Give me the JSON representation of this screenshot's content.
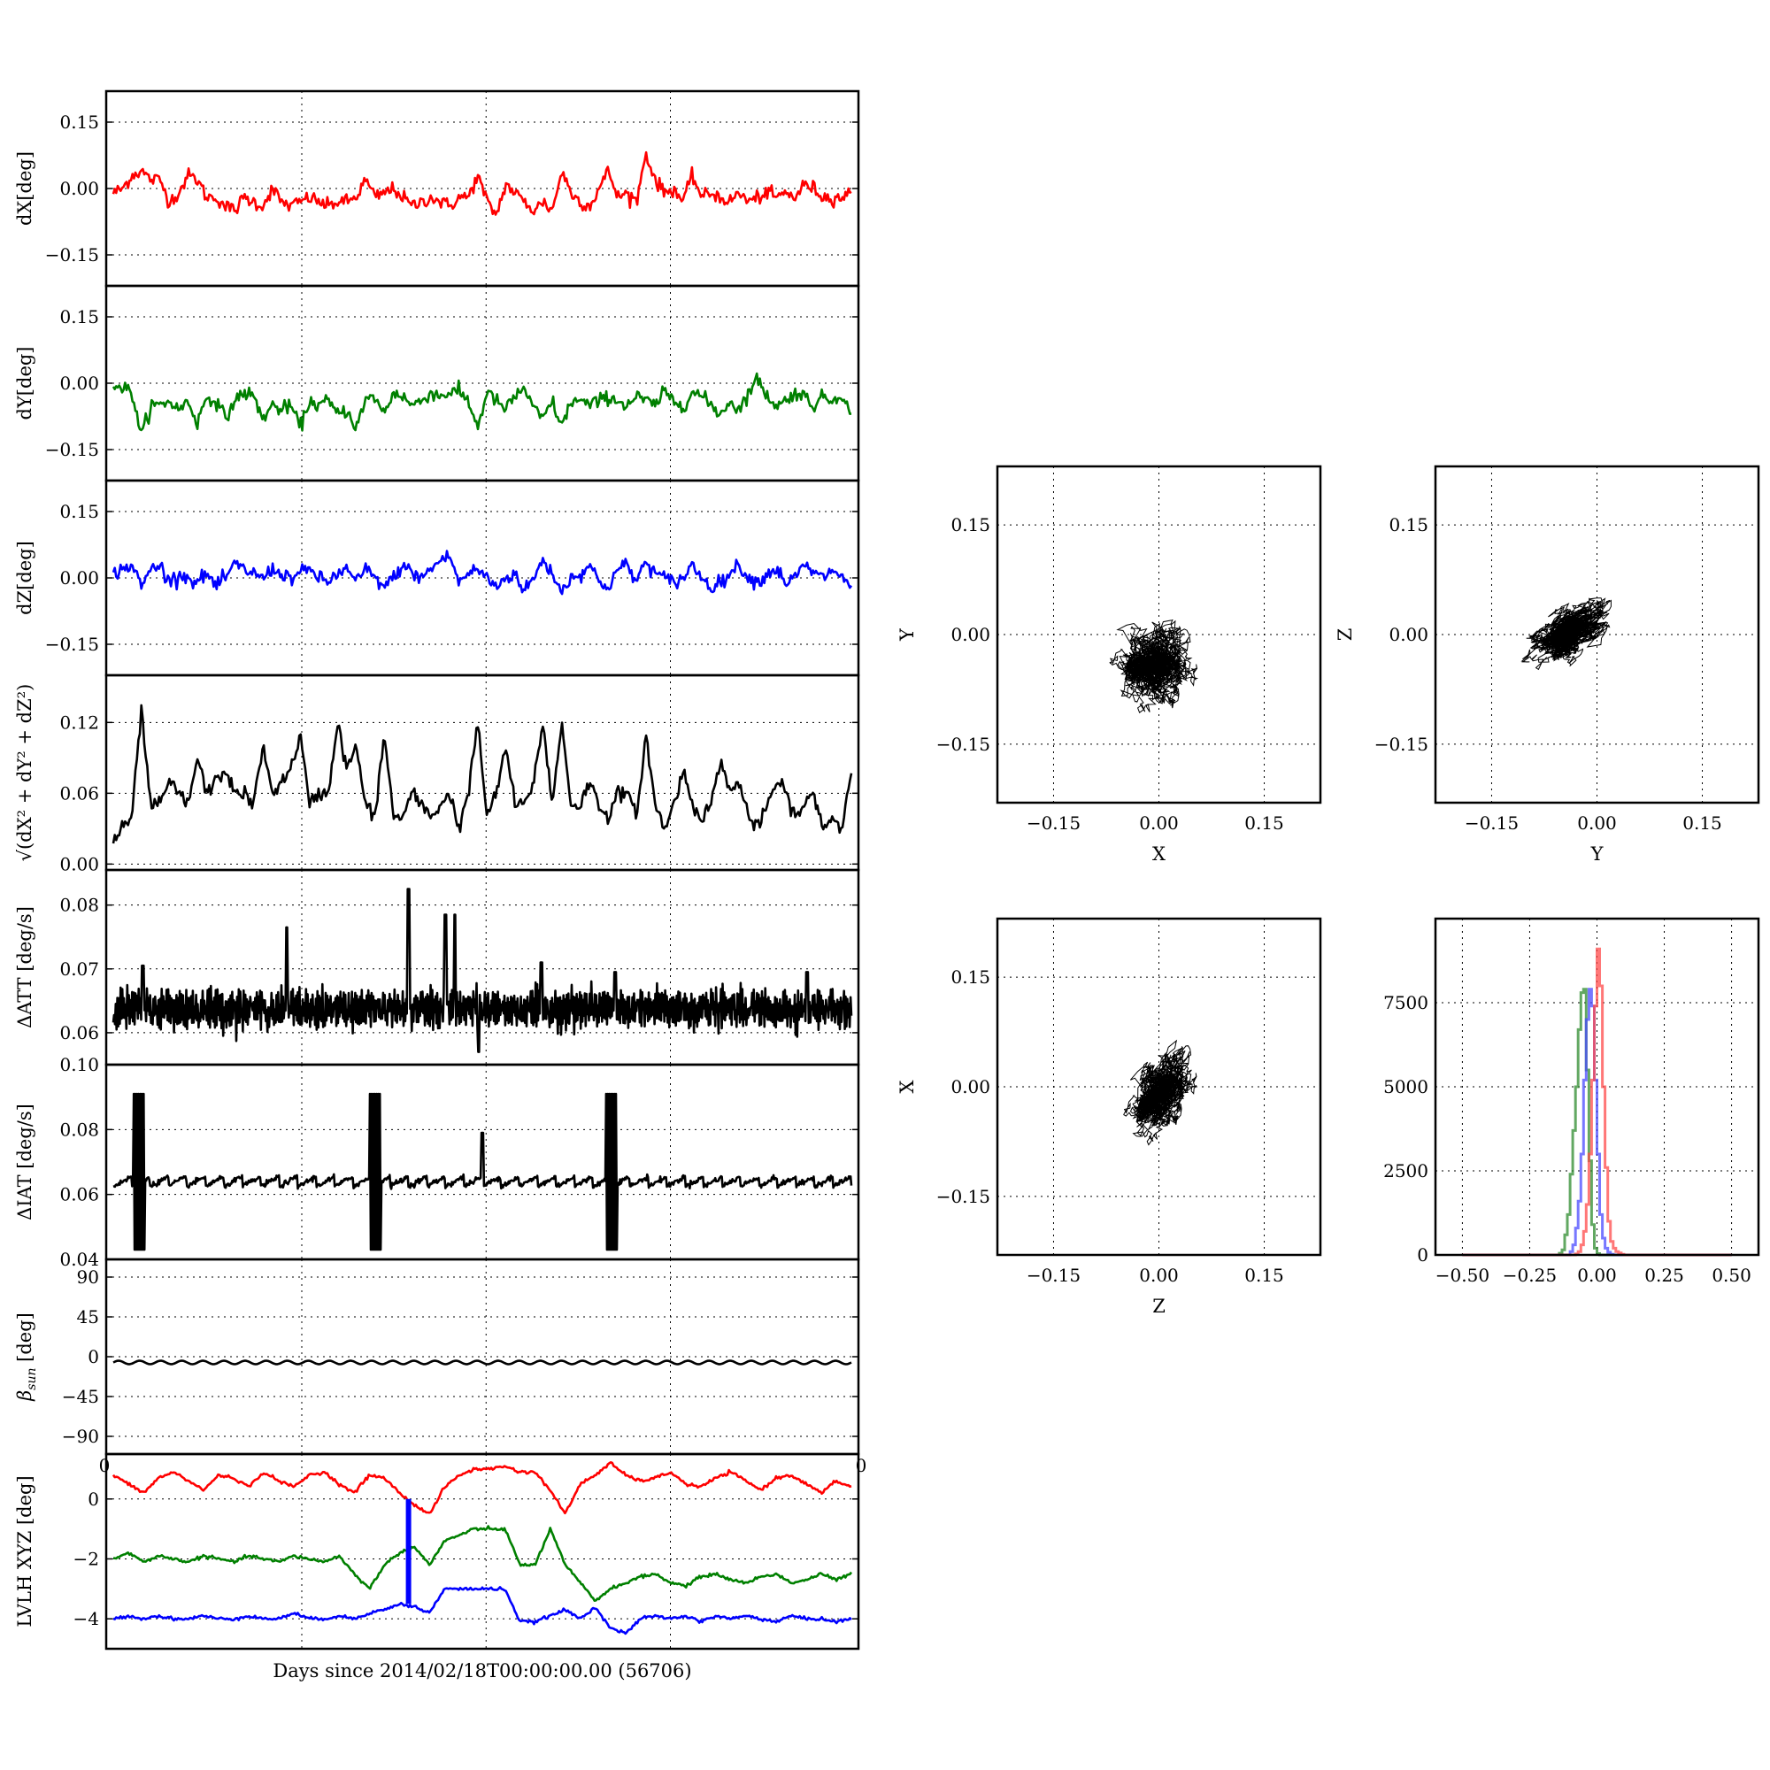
{
  "chart_data": {
    "shared_xlabel": "Days since 2014/02/18T00:00:00.00 (56706)",
    "strip_panels": [
      {
        "name": "dx",
        "type": "line",
        "ylabel": "dX[deg]",
        "ylim": [
          -0.22,
          0.22
        ],
        "yticks": [
          -0.15,
          0.0,
          0.15
        ],
        "ytick_labels": [
          "−0.15",
          "0.00",
          "0.15"
        ],
        "grid": true,
        "series": [
          {
            "color": "#ff0000",
            "values": [
              -0.01,
              0.0,
              0.03,
              0.04,
              0.02,
              0.02,
              -0.03,
              -0.01,
              0.03,
              0.02,
              -0.02,
              -0.02,
              -0.04,
              -0.05,
              -0.02,
              -0.03,
              -0.04,
              0.0,
              -0.03,
              -0.04,
              -0.03,
              -0.02,
              -0.03,
              -0.04,
              -0.03,
              -0.03,
              -0.02,
              0.02,
              -0.02,
              -0.01,
              0.0,
              -0.02,
              -0.04,
              -0.03,
              -0.02,
              -0.03,
              -0.04,
              -0.02,
              -0.02,
              0.03,
              -0.03,
              -0.06,
              0.01,
              -0.01,
              -0.03,
              -0.05,
              -0.03,
              -0.05,
              0.04,
              -0.01,
              -0.03,
              -0.04,
              0.0,
              0.04,
              -0.02,
              -0.01,
              -0.03,
              0.08,
              0.02,
              -0.01,
              0.0,
              -0.03,
              0.03,
              -0.02,
              -0.01,
              -0.02,
              -0.03,
              -0.01,
              -0.03,
              -0.02,
              -0.01,
              -0.02,
              -0.01,
              -0.02,
              0.01,
              0.0,
              -0.02,
              -0.02,
              -0.02,
              -0.01
            ]
          }
        ]
      },
      {
        "name": "dy",
        "type": "line",
        "ylabel": "dY[deg]",
        "ylim": [
          -0.22,
          0.22
        ],
        "yticks": [
          -0.15,
          0.0,
          0.15
        ],
        "ytick_labels": [
          "−0.15",
          "0.00",
          "0.15"
        ],
        "grid": true,
        "series": [
          {
            "color": "#008000",
            "values": [
              0.0,
              -0.01,
              -0.02,
              -0.12,
              -0.05,
              -0.05,
              -0.04,
              -0.06,
              -0.04,
              -0.09,
              -0.03,
              -0.04,
              -0.08,
              -0.04,
              -0.02,
              -0.03,
              -0.08,
              -0.05,
              -0.06,
              -0.05,
              -0.1,
              -0.04,
              -0.05,
              -0.04,
              -0.07,
              -0.06,
              -0.1,
              -0.04,
              -0.03,
              -0.07,
              -0.02,
              -0.03,
              -0.05,
              -0.04,
              -0.02,
              -0.03,
              -0.02,
              -0.02,
              -0.04,
              -0.1,
              -0.02,
              -0.04,
              -0.06,
              -0.03,
              -0.01,
              -0.06,
              -0.08,
              -0.04,
              -0.1,
              -0.04,
              -0.04,
              -0.05,
              -0.04,
              -0.03,
              -0.04,
              -0.05,
              -0.03,
              -0.04,
              -0.05,
              -0.02,
              -0.04,
              -0.05,
              -0.02,
              -0.03,
              -0.05,
              -0.07,
              -0.04,
              -0.06,
              -0.02,
              0.01,
              -0.03,
              -0.05,
              -0.04,
              -0.02,
              -0.03,
              -0.05,
              -0.03,
              -0.04,
              -0.02,
              -0.08
            ]
          }
        ]
      },
      {
        "name": "dz",
        "type": "line",
        "ylabel": "dZ[deg]",
        "ylim": [
          -0.22,
          0.22
        ],
        "yticks": [
          -0.15,
          0.0,
          0.15
        ],
        "ytick_labels": [
          "−0.15",
          "0.00",
          "0.15"
        ],
        "grid": true,
        "series": [
          {
            "color": "#0000ff",
            "values": [
              0.01,
              0.02,
              0.03,
              -0.02,
              0.02,
              0.03,
              -0.01,
              0.01,
              0.0,
              -0.01,
              0.01,
              -0.02,
              0.0,
              0.03,
              0.02,
              0.01,
              0.0,
              0.02,
              0.01,
              0.0,
              0.01,
              0.02,
              0.0,
              -0.01,
              0.01,
              0.02,
              -0.01,
              0.02,
              0.0,
              -0.02,
              0.0,
              0.03,
              0.01,
              0.0,
              0.02,
              0.04,
              0.05,
              -0.01,
              0.01,
              0.02,
              0.0,
              -0.02,
              0.0,
              0.01,
              -0.03,
              0.0,
              0.04,
              0.01,
              -0.03,
              0.0,
              0.01,
              0.03,
              -0.01,
              -0.02,
              0.02,
              0.03,
              -0.01,
              0.04,
              0.01,
              0.0,
              -0.01,
              0.0,
              0.03,
              0.0,
              -0.02,
              -0.01,
              0.01,
              0.03,
              0.0,
              -0.01,
              0.01,
              0.02,
              -0.01,
              0.0,
              0.03,
              0.01,
              0.0,
              0.02,
              0.0,
              -0.02
            ]
          }
        ]
      },
      {
        "name": "total",
        "type": "line",
        "ylabel": "√(dX² + dY² + dZ²)",
        "ylim": [
          -0.005,
          0.16
        ],
        "yticks": [
          0.0,
          0.06,
          0.12
        ],
        "ytick_labels": [
          "0.00",
          "0.06",
          "0.12"
        ],
        "grid": true,
        "series": [
          {
            "color": "#000000",
            "values": [
              0.02,
              0.03,
              0.04,
              0.13,
              0.05,
              0.05,
              0.07,
              0.06,
              0.05,
              0.09,
              0.06,
              0.07,
              0.08,
              0.06,
              0.06,
              0.05,
              0.1,
              0.06,
              0.07,
              0.08,
              0.11,
              0.05,
              0.06,
              0.06,
              0.12,
              0.08,
              0.1,
              0.05,
              0.04,
              0.11,
              0.04,
              0.04,
              0.06,
              0.05,
              0.04,
              0.05,
              0.06,
              0.03,
              0.06,
              0.12,
              0.04,
              0.06,
              0.1,
              0.05,
              0.05,
              0.07,
              0.12,
              0.05,
              0.12,
              0.05,
              0.05,
              0.07,
              0.05,
              0.04,
              0.06,
              0.06,
              0.04,
              0.11,
              0.05,
              0.03,
              0.05,
              0.08,
              0.05,
              0.04,
              0.05,
              0.09,
              0.06,
              0.07,
              0.04,
              0.03,
              0.05,
              0.07,
              0.06,
              0.04,
              0.05,
              0.06,
              0.03,
              0.04,
              0.03,
              0.08
            ]
          }
        ]
      },
      {
        "name": "datt",
        "type": "line",
        "ylabel": "ΔATT [deg/s]",
        "ylim": [
          0.055,
          0.0855
        ],
        "yticks": [
          0.06,
          0.07,
          0.08
        ],
        "ytick_labels": [
          "0.06",
          "0.07",
          "0.08"
        ],
        "grid": true,
        "series": [
          {
            "color": "#000000",
            "mean": 0.0635,
            "band": 0.0025,
            "spikes": [
              [
                0.04,
                0.0705
              ],
              [
                0.235,
                0.0765
              ],
              [
                0.4,
                0.0825
              ],
              [
                0.45,
                0.0785
              ],
              [
                0.463,
                0.0785
              ],
              [
                0.495,
                0.057
              ],
              [
                0.58,
                0.071
              ],
              [
                0.68,
                0.0695
              ],
              [
                0.94,
                0.0695
              ]
            ]
          }
        ]
      },
      {
        "name": "diat",
        "type": "line",
        "ylabel": "ΔIAT [deg/s]",
        "ylim": [
          0.04,
          0.1
        ],
        "yticks": [
          0.04,
          0.06,
          0.08,
          0.1
        ],
        "ytick_labels": [
          "0.04",
          "0.06",
          "0.08",
          "0.10"
        ],
        "grid": true,
        "series": [
          {
            "color": "#000000",
            "mean": 0.064,
            "sawtooth": 0.003,
            "bursts": [
              0.035,
              0.355,
              0.675
            ],
            "spike": [
              0.5,
              0.079
            ]
          }
        ]
      },
      {
        "name": "beta",
        "type": "line",
        "ylabel": "β_sun [deg]",
        "ylabel_main": "β",
        "ylabel_sub": "sun",
        "ylim": [
          -110,
          110
        ],
        "yticks": [
          -90,
          -45,
          0,
          45,
          90
        ],
        "ytick_labels": [
          "−90",
          "−45",
          "0",
          "45",
          "90"
        ],
        "grid": true,
        "series": [
          {
            "color": "#000000",
            "mean": -6.5,
            "amplitude": 2
          }
        ]
      },
      {
        "name": "lvlh",
        "type": "line",
        "ylabel": "LVLH XYZ [deg]",
        "ylim": [
          -5.0,
          1.5
        ],
        "yticks": [
          -4,
          -2,
          0
        ],
        "ytick_labels": [
          "−4",
          "−2",
          "0"
        ],
        "grid": true,
        "xlim": [
          0,
          4
        ],
        "xtick_labels_visible": [
          "0",
          "0"
        ],
        "series": [
          {
            "color": "#ff0000",
            "values": [
              0.8,
              0.5,
              0.2,
              0.7,
              0.9,
              0.6,
              0.3,
              0.8,
              0.7,
              0.4,
              0.9,
              0.6,
              0.4,
              0.8,
              0.9,
              0.5,
              0.2,
              0.8,
              0.7,
              0.2,
              -0.2,
              -0.5,
              0.4,
              0.8,
              1.0,
              1.0,
              1.1,
              0.9,
              0.9,
              0.3,
              -0.5,
              0.5,
              0.8,
              1.2,
              0.8,
              0.6,
              0.7,
              0.9,
              0.5,
              0.4,
              0.7,
              0.9,
              0.6,
              0.3,
              0.7,
              0.8,
              0.5,
              0.2,
              0.6,
              0.4
            ]
          },
          {
            "color": "#008000",
            "values": [
              -2.0,
              -1.8,
              -2.1,
              -1.9,
              -2.0,
              -2.1,
              -1.9,
              -2.0,
              -2.1,
              -1.9,
              -2.0,
              -2.1,
              -1.9,
              -2.0,
              -2.1,
              -1.9,
              -2.5,
              -3.0,
              -2.2,
              -1.8,
              -1.6,
              -2.2,
              -1.4,
              -1.2,
              -1.0,
              -1.0,
              -1.0,
              -2.2,
              -2.2,
              -1.0,
              -2.2,
              -2.8,
              -3.4,
              -3.0,
              -2.8,
              -2.6,
              -2.5,
              -2.8,
              -2.9,
              -2.6,
              -2.5,
              -2.7,
              -2.8,
              -2.6,
              -2.5,
              -2.8,
              -2.7,
              -2.5,
              -2.7,
              -2.5
            ]
          },
          {
            "color": "#0000ff",
            "values": [
              -4.0,
              -3.9,
              -4.0,
              -3.9,
              -4.0,
              -4.0,
              -3.9,
              -4.0,
              -4.0,
              -3.9,
              -4.0,
              -4.0,
              -3.8,
              -4.0,
              -4.0,
              -3.9,
              -4.0,
              -3.8,
              -3.7,
              -3.5,
              -3.6,
              -3.8,
              -3.0,
              -3.0,
              -3.0,
              -3.0,
              -3.0,
              -4.1,
              -4.1,
              -3.9,
              -3.7,
              -4.0,
              -3.6,
              -4.3,
              -4.5,
              -4.0,
              -3.9,
              -4.0,
              -3.9,
              -4.1,
              -3.9,
              -4.0,
              -3.9,
              -4.0,
              -4.1,
              -3.9,
              -4.0,
              -4.0,
              -4.1,
              -4.0
            ]
          }
        ],
        "bar": {
          "color": "#0000ff",
          "x": 0.4,
          "from": -3.5,
          "to": 0.0
        }
      }
    ],
    "scatter_panels": [
      {
        "name": "xy",
        "type": "scatter",
        "xlabel": "X",
        "ylabel": "Y",
        "xlim": [
          -0.23,
          0.23
        ],
        "ylim": [
          -0.23,
          0.23
        ],
        "ticks": [
          -0.15,
          0.0,
          0.15
        ],
        "tick_labels": [
          "−0.15",
          "0.00",
          "0.15"
        ],
        "grid": true,
        "cluster": {
          "cx": -0.01,
          "cy": -0.04,
          "sx": 0.03,
          "sy": 0.035,
          "corr": 0.0,
          "extent": [
            -0.07,
            0.09,
            -0.12,
            0.02
          ]
        }
      },
      {
        "name": "yz",
        "type": "scatter",
        "xlabel": "Y",
        "ylabel": "Z",
        "xlim": [
          -0.23,
          0.23
        ],
        "ylim": [
          -0.23,
          0.23
        ],
        "ticks": [
          -0.15,
          0.0,
          0.15
        ],
        "tick_labels": [
          "−0.15",
          "0.00",
          "0.15"
        ],
        "grid": true,
        "cluster": {
          "cx": -0.04,
          "cy": 0.0,
          "sx": 0.035,
          "sy": 0.025,
          "corr": 0.6,
          "extent": [
            -0.12,
            0.02,
            -0.06,
            0.05
          ]
        }
      },
      {
        "name": "zx",
        "type": "scatter",
        "xlabel": "Z",
        "ylabel": "X",
        "xlim": [
          -0.23,
          0.23
        ],
        "ylim": [
          -0.23,
          0.23
        ],
        "ticks": [
          -0.15,
          0.0,
          0.15
        ],
        "tick_labels": [
          "−0.15",
          "0.00",
          "0.15"
        ],
        "grid": true,
        "cluster": {
          "cx": 0.0,
          "cy": -0.01,
          "sx": 0.025,
          "sy": 0.035,
          "corr": 0.4,
          "extent": [
            -0.05,
            0.06,
            -0.09,
            0.09
          ]
        }
      }
    ],
    "histogram": {
      "name": "hist",
      "type": "bar",
      "xlim": [
        -0.6,
        0.6
      ],
      "ylim": [
        0,
        10000
      ],
      "xticks": [
        -0.5,
        -0.25,
        0.0,
        0.25,
        0.5
      ],
      "xtick_labels": [
        "−0.50",
        "−0.25",
        "0.00",
        "0.25",
        "0.50"
      ],
      "yticks": [
        0,
        2500,
        5000,
        7500
      ],
      "ytick_labels": [
        "0",
        "2500",
        "5000",
        "7500"
      ],
      "grid": true,
      "bins": [
        -0.15,
        -0.14,
        -0.13,
        -0.12,
        -0.11,
        -0.1,
        -0.09,
        -0.08,
        -0.07,
        -0.06,
        -0.05,
        -0.04,
        -0.03,
        -0.02,
        -0.01,
        0.0,
        0.01,
        0.02,
        0.03,
        0.04,
        0.05,
        0.06,
        0.07,
        0.08,
        0.09,
        0.1
      ],
      "series": [
        {
          "color": "#2e8b2e",
          "values": [
            0,
            50,
            150,
            600,
            1200,
            2400,
            3700,
            5000,
            6700,
            7800,
            7900,
            5500,
            2800,
            900,
            200,
            40,
            0,
            0,
            0,
            0,
            0,
            0,
            0,
            0,
            0,
            0
          ]
        },
        {
          "color": "#4a4aff",
          "values": [
            0,
            0,
            0,
            0,
            0,
            100,
            300,
            800,
            1600,
            3000,
            5200,
            7000,
            7900,
            7400,
            5200,
            3000,
            1200,
            500,
            200,
            80,
            20,
            0,
            0,
            0,
            0,
            0
          ]
        },
        {
          "color": "#ff4a4a",
          "values": [
            0,
            0,
            0,
            0,
            0,
            0,
            0,
            30,
            100,
            300,
            700,
            1500,
            3000,
            5200,
            7400,
            9100,
            8000,
            5000,
            2600,
            1000,
            400,
            200,
            100,
            60,
            20,
            0
          ]
        }
      ]
    }
  }
}
